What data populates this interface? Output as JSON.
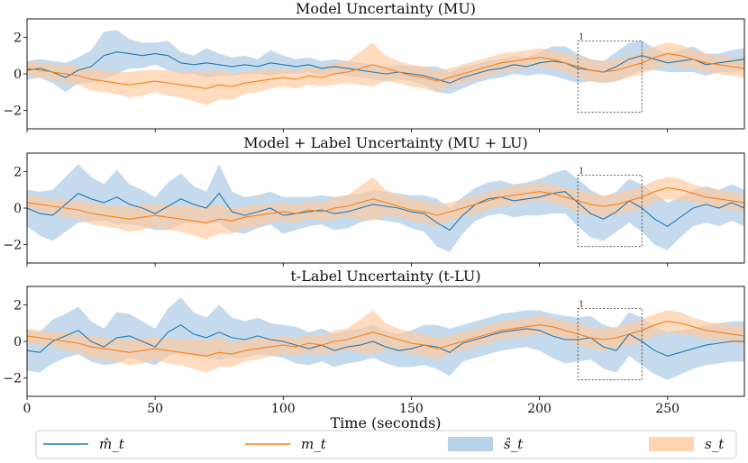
{
  "chart_data": {
    "type": "line",
    "xlabel": "Time (seconds)",
    "xlim": [
      0,
      280
    ],
    "xticks": [
      0,
      50,
      100,
      150,
      200,
      250
    ],
    "ylim": [
      -3,
      3
    ],
    "yticks": [
      -2,
      0,
      2
    ],
    "colors": {
      "pred": "#1f77b4",
      "true": "#ff7f0e",
      "pred_band": "#a6c8e4",
      "true_band": "#ffc99d"
    },
    "legend": {
      "placement": "bottom",
      "entries": [
        "m̂_t",
        "m_t",
        "ŝ_t",
        "s_t"
      ]
    },
    "inset_box": {
      "label": "1",
      "x_range": [
        215,
        240
      ],
      "y_range": [
        -2.1,
        1.8
      ]
    },
    "true_series": {
      "x": [
        0,
        5,
        10,
        15,
        20,
        25,
        30,
        35,
        40,
        45,
        50,
        55,
        60,
        65,
        70,
        75,
        80,
        85,
        90,
        95,
        100,
        105,
        110,
        115,
        120,
        125,
        130,
        135,
        140,
        145,
        150,
        155,
        160,
        165,
        170,
        175,
        180,
        185,
        190,
        195,
        200,
        205,
        210,
        215,
        220,
        225,
        230,
        235,
        240,
        245,
        250,
        255,
        260,
        265,
        270,
        275,
        280
      ],
      "mean": [
        0.3,
        0.2,
        0.1,
        0.0,
        -0.1,
        -0.3,
        -0.4,
        -0.5,
        -0.6,
        -0.5,
        -0.4,
        -0.5,
        -0.6,
        -0.7,
        -0.8,
        -0.6,
        -0.7,
        -0.5,
        -0.4,
        -0.3,
        -0.2,
        -0.3,
        -0.1,
        -0.2,
        0.0,
        0.1,
        0.3,
        0.5,
        0.3,
        0.1,
        -0.1,
        -0.2,
        -0.4,
        -0.2,
        0.0,
        0.2,
        0.4,
        0.6,
        0.7,
        0.8,
        0.9,
        0.8,
        0.6,
        0.4,
        0.2,
        0.1,
        0.2,
        0.4,
        0.6,
        0.9,
        1.1,
        1.0,
        0.8,
        0.6,
        0.5,
        0.4,
        0.3
      ],
      "std": [
        0.4,
        0.4,
        0.4,
        0.5,
        0.5,
        0.6,
        0.6,
        0.6,
        0.7,
        0.7,
        0.6,
        0.7,
        0.7,
        0.8,
        0.9,
        0.8,
        0.7,
        0.6,
        0.6,
        0.5,
        0.5,
        0.5,
        0.5,
        0.5,
        0.6,
        0.6,
        0.9,
        1.2,
        0.7,
        0.6,
        0.6,
        0.6,
        0.6,
        0.5,
        0.5,
        0.5,
        0.5,
        0.5,
        0.5,
        0.5,
        0.5,
        0.5,
        0.5,
        0.6,
        0.6,
        0.6,
        0.6,
        0.6,
        0.6,
        0.6,
        0.6,
        0.6,
        0.5,
        0.5,
        0.5,
        0.5,
        0.5
      ]
    },
    "panels": [
      {
        "title": "Model Uncertainty (MU)",
        "pred": {
          "x": [
            0,
            5,
            10,
            15,
            20,
            25,
            30,
            35,
            40,
            45,
            50,
            55,
            60,
            65,
            70,
            75,
            80,
            85,
            90,
            95,
            100,
            105,
            110,
            115,
            120,
            125,
            130,
            135,
            140,
            145,
            150,
            155,
            160,
            165,
            170,
            175,
            180,
            185,
            190,
            195,
            200,
            205,
            210,
            215,
            220,
            225,
            230,
            235,
            240,
            245,
            250,
            255,
            260,
            265,
            270,
            275,
            280
          ],
          "mean": [
            0.2,
            0.3,
            0.1,
            -0.2,
            0.2,
            0.4,
            1.0,
            1.2,
            1.1,
            1.0,
            1.1,
            1.0,
            0.6,
            0.5,
            0.6,
            0.5,
            0.4,
            0.5,
            0.4,
            0.6,
            0.5,
            0.4,
            0.5,
            0.3,
            0.4,
            0.3,
            0.2,
            0.1,
            0.0,
            0.1,
            0.0,
            -0.1,
            -0.3,
            -0.5,
            -0.2,
            0.0,
            0.2,
            0.3,
            0.5,
            0.4,
            0.6,
            0.7,
            0.6,
            0.3,
            0.2,
            0.1,
            0.4,
            0.8,
            1.0,
            0.8,
            0.6,
            0.7,
            0.8,
            0.5,
            0.6,
            0.7,
            0.8
          ],
          "std": [
            0.5,
            0.5,
            0.6,
            0.8,
            0.7,
            0.9,
            1.3,
            1.2,
            0.8,
            0.7,
            0.6,
            0.8,
            0.6,
            0.5,
            0.8,
            0.6,
            0.5,
            0.5,
            0.4,
            0.7,
            0.5,
            0.4,
            0.4,
            0.4,
            0.4,
            0.4,
            0.4,
            0.4,
            0.4,
            0.4,
            0.4,
            0.5,
            0.7,
            0.6,
            0.6,
            0.5,
            0.5,
            0.5,
            0.5,
            0.5,
            0.6,
            0.8,
            0.9,
            0.8,
            0.6,
            0.6,
            0.8,
            0.9,
            0.8,
            0.6,
            0.5,
            0.6,
            0.7,
            0.6,
            0.5,
            0.6,
            0.6
          ]
        }
      },
      {
        "title": "Model + Label Uncertainty (MU + LU)",
        "pred": {
          "x": [
            0,
            5,
            10,
            15,
            20,
            25,
            30,
            35,
            40,
            45,
            50,
            55,
            60,
            65,
            70,
            75,
            80,
            85,
            90,
            95,
            100,
            105,
            110,
            115,
            120,
            125,
            130,
            135,
            140,
            145,
            150,
            155,
            160,
            165,
            170,
            175,
            180,
            185,
            190,
            195,
            200,
            205,
            210,
            215,
            220,
            225,
            230,
            235,
            240,
            245,
            250,
            255,
            260,
            265,
            270,
            275,
            280
          ],
          "mean": [
            0.0,
            -0.3,
            -0.4,
            0.2,
            0.8,
            0.5,
            0.3,
            0.6,
            0.2,
            0.0,
            -0.3,
            0.1,
            0.5,
            0.2,
            0.0,
            0.8,
            -0.2,
            -0.4,
            -0.2,
            0.0,
            -0.4,
            -0.3,
            -0.2,
            -0.1,
            -0.3,
            -0.2,
            0.0,
            0.2,
            0.1,
            0.0,
            -0.2,
            -0.3,
            -0.8,
            -1.2,
            -0.4,
            0.2,
            0.5,
            0.6,
            0.4,
            0.5,
            0.6,
            0.8,
            0.9,
            0.3,
            -0.3,
            -0.6,
            -0.2,
            0.4,
            0.0,
            -0.6,
            -1.0,
            -0.5,
            0.0,
            0.2,
            0.0,
            0.3,
            0.0
          ],
          "std": [
            1.0,
            1.2,
            1.4,
            1.5,
            1.6,
            1.2,
            1.0,
            1.5,
            1.1,
            1.0,
            0.9,
            1.3,
            1.4,
            1.0,
            0.9,
            1.6,
            1.1,
            1.0,
            0.9,
            0.9,
            1.0,
            0.9,
            0.8,
            0.8,
            0.9,
            0.9,
            0.8,
            0.8,
            0.8,
            0.8,
            0.9,
            1.0,
            1.3,
            1.2,
            1.0,
            0.9,
            0.9,
            0.9,
            0.9,
            0.9,
            1.0,
            1.1,
            1.2,
            1.3,
            1.3,
            1.2,
            1.1,
            1.2,
            1.3,
            1.4,
            1.3,
            1.1,
            1.0,
            1.0,
            1.0,
            1.0,
            1.0
          ]
        }
      },
      {
        "title": "t-Label Uncertainty (t-LU)",
        "pred": {
          "x": [
            0,
            5,
            10,
            15,
            20,
            25,
            30,
            35,
            40,
            45,
            50,
            55,
            60,
            65,
            70,
            75,
            80,
            85,
            90,
            95,
            100,
            105,
            110,
            115,
            120,
            125,
            130,
            135,
            140,
            145,
            150,
            155,
            160,
            165,
            170,
            175,
            180,
            185,
            190,
            195,
            200,
            205,
            210,
            215,
            220,
            225,
            230,
            235,
            240,
            245,
            250,
            255,
            260,
            265,
            270,
            275,
            280
          ],
          "mean": [
            -0.5,
            -0.6,
            0.0,
            0.3,
            0.6,
            0.0,
            -0.3,
            0.2,
            0.3,
            0.0,
            -0.3,
            0.5,
            0.9,
            0.4,
            0.2,
            0.5,
            0.2,
            0.1,
            0.3,
            0.1,
            0.0,
            -0.2,
            -0.4,
            -0.2,
            -0.5,
            -0.3,
            -0.2,
            0.0,
            -0.3,
            -0.5,
            -0.4,
            -0.2,
            -0.3,
            -0.6,
            -0.1,
            0.1,
            0.3,
            0.5,
            0.6,
            0.7,
            0.6,
            0.3,
            0.1,
            0.1,
            0.2,
            -0.3,
            -0.5,
            0.4,
            0.0,
            -0.5,
            -0.8,
            -0.6,
            -0.4,
            -0.2,
            -0.1,
            0.0,
            0.0
          ],
          "std": [
            1.1,
            1.1,
            1.2,
            1.2,
            1.3,
            1.1,
            1.0,
            1.4,
            1.2,
            1.1,
            1.0,
            1.3,
            1.5,
            1.2,
            1.1,
            1.5,
            1.1,
            1.0,
            1.0,
            0.9,
            0.9,
            1.0,
            0.9,
            0.9,
            0.9,
            0.9,
            0.9,
            0.9,
            0.9,
            0.9,
            1.0,
            1.1,
            1.2,
            1.3,
            1.0,
            1.0,
            1.0,
            1.0,
            1.0,
            1.0,
            1.1,
            1.2,
            1.3,
            1.2,
            1.2,
            1.2,
            1.2,
            1.2,
            1.3,
            1.3,
            1.3,
            1.2,
            1.1,
            1.1,
            1.1,
            1.1,
            1.1
          ]
        }
      }
    ]
  }
}
